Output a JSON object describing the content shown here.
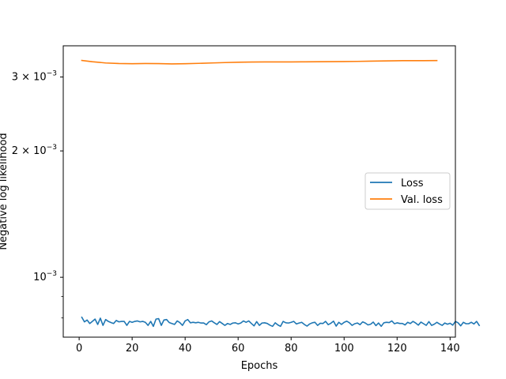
{
  "chart_data": {
    "type": "line",
    "xlabel": "Epochs",
    "ylabel": "Negative log likelihood",
    "yscale": "log",
    "xlim": [
      -6,
      142
    ],
    "ylim": [
      0.00072,
      0.00356
    ],
    "x_ticks": [
      0,
      20,
      40,
      60,
      80,
      100,
      120,
      140
    ],
    "y_ticks": [
      {
        "value": 0.001,
        "mantissa": "",
        "exp": "−3"
      },
      {
        "value": 0.002,
        "mantissa": "2",
        "exp": "−3"
      },
      {
        "value": 0.003,
        "mantissa": "3",
        "exp": "−3"
      }
    ],
    "y_minor_ticks": [
      0.0008,
      0.0009,
      0.004
    ],
    "legend_placement": "center-right",
    "series": [
      {
        "name": "Loss",
        "color": "#1f77b4",
        "x_start": 1,
        "x_step": 1,
        "values": [
          0.000803,
          0.000783,
          0.000791,
          0.000776,
          0.000785,
          0.000795,
          0.000772,
          0.000799,
          0.000768,
          0.000793,
          0.000785,
          0.00078,
          0.000776,
          0.000789,
          0.000783,
          0.000785,
          0.000785,
          0.000768,
          0.000785,
          0.000781,
          0.000785,
          0.000787,
          0.000783,
          0.000785,
          0.000781,
          0.000768,
          0.000785,
          0.000764,
          0.000795,
          0.000797,
          0.000768,
          0.000791,
          0.000793,
          0.00078,
          0.000776,
          0.000772,
          0.000787,
          0.00078,
          0.000768,
          0.000787,
          0.000793,
          0.000779,
          0.000781,
          0.000779,
          0.000781,
          0.000778,
          0.000778,
          0.000771,
          0.000783,
          0.000787,
          0.000779,
          0.000772,
          0.000784,
          0.000776,
          0.000768,
          0.000776,
          0.000772,
          0.000778,
          0.000779,
          0.000774,
          0.000778,
          0.000787,
          0.000781,
          0.000787,
          0.000776,
          0.000766,
          0.000784,
          0.000768,
          0.000778,
          0.000779,
          0.000776,
          0.000769,
          0.000764,
          0.000779,
          0.00077,
          0.000764,
          0.000785,
          0.000779,
          0.000778,
          0.000781,
          0.000785,
          0.000774,
          0.000778,
          0.000781,
          0.000772,
          0.000765,
          0.000774,
          0.000779,
          0.000781,
          0.000768,
          0.000777,
          0.000776,
          0.000785,
          0.000771,
          0.000777,
          0.000786,
          0.000765,
          0.000781,
          0.000772,
          0.000781,
          0.000786,
          0.000779,
          0.000768,
          0.000775,
          0.000778,
          0.000771,
          0.000783,
          0.000778,
          0.00077,
          0.000773,
          0.000782,
          0.000767,
          0.000778,
          0.000764,
          0.000779,
          0.000781,
          0.00078,
          0.000787,
          0.000775,
          0.000779,
          0.000776,
          0.000776,
          0.00077,
          0.000781,
          0.000776,
          0.000785,
          0.000778,
          0.000769,
          0.000782,
          0.000775,
          0.000768,
          0.000784,
          0.000768,
          0.000773,
          0.000781,
          0.000774,
          0.000768,
          0.000778,
          0.000773,
          0.000777,
          0.000769,
          0.000785,
          0.000779,
          0.000766,
          0.000781,
          0.000775,
          0.000775,
          0.000781,
          0.000774,
          0.000785,
          0.000768
        ]
      },
      {
        "name": "Val. loss",
        "color": "#ff7f0e",
        "x": [
          1,
          5,
          10,
          15,
          20,
          25,
          30,
          35,
          40,
          45,
          50,
          55,
          60,
          65,
          70,
          75,
          80,
          85,
          90,
          95,
          100,
          105,
          110,
          115,
          120,
          125,
          130,
          135
        ],
        "values": [
          0.003285,
          0.003262,
          0.00324,
          0.00323,
          0.003227,
          0.00323,
          0.003228,
          0.003224,
          0.003227,
          0.003233,
          0.00324,
          0.003247,
          0.003253,
          0.003257,
          0.003258,
          0.003259,
          0.003258,
          0.00326,
          0.003262,
          0.003264,
          0.003266,
          0.003268,
          0.003272,
          0.003276,
          0.00328,
          0.003282,
          0.003282,
          0.003283
        ]
      }
    ]
  }
}
